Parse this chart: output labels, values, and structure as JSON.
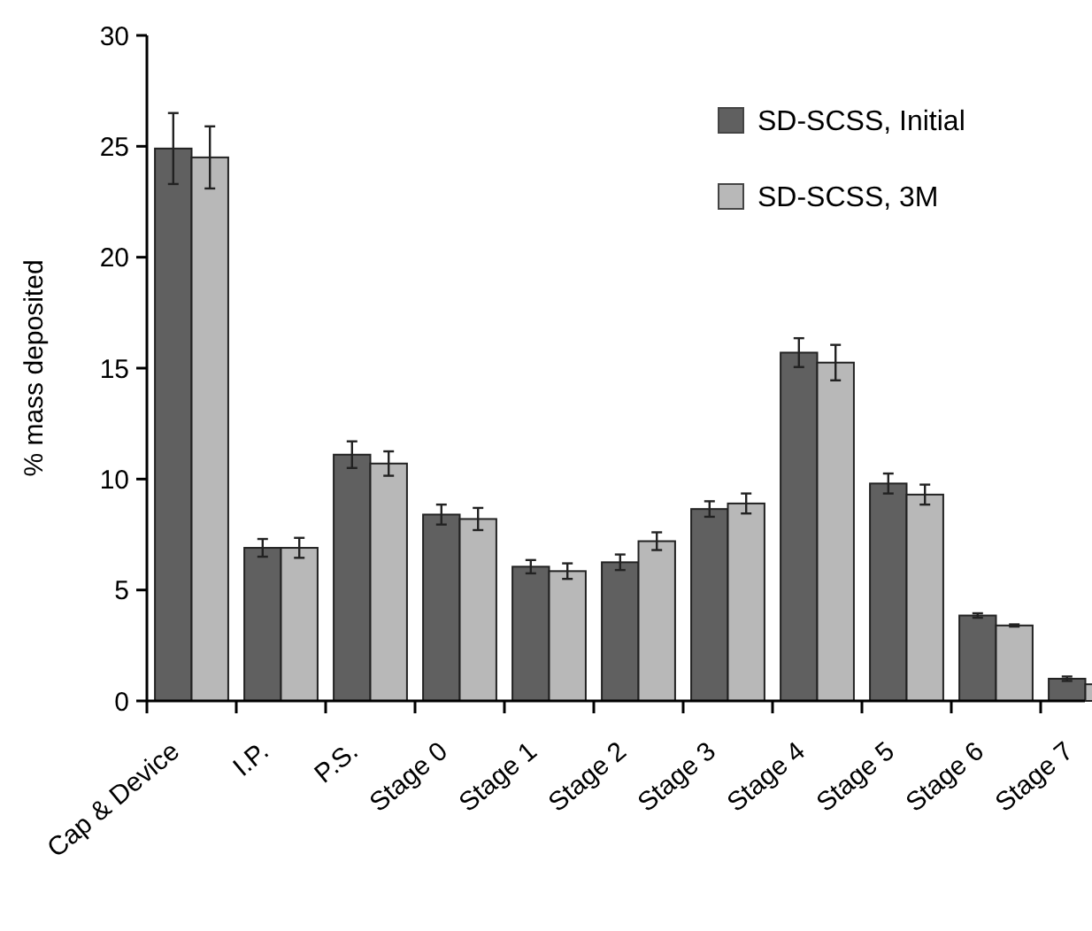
{
  "chart_data": {
    "type": "bar",
    "ylabel": "% mass deposited",
    "categories": [
      "Cap & Device",
      "I.P.",
      "P.S.",
      "Stage 0",
      "Stage 1",
      "Stage 2",
      "Stage 3",
      "Stage 4",
      "Stage 5",
      "Stage 6",
      "Stage 7"
    ],
    "series": [
      {
        "name": "SD-SCSS, Initial",
        "color": "#606060",
        "values": [
          24.9,
          6.9,
          11.1,
          8.4,
          6.05,
          6.25,
          8.65,
          15.7,
          9.8,
          3.85,
          1.0
        ],
        "errors": [
          1.6,
          0.4,
          0.6,
          0.45,
          0.3,
          0.35,
          0.35,
          0.65,
          0.45,
          0.1,
          0.1
        ]
      },
      {
        "name": "SD-SCSS, 3M",
        "color": "#b8b8b8",
        "values": [
          24.5,
          6.9,
          10.7,
          8.2,
          5.85,
          7.2,
          8.9,
          15.25,
          9.3,
          3.4,
          0.75
        ],
        "errors": [
          1.4,
          0.45,
          0.55,
          0.5,
          0.35,
          0.4,
          0.45,
          0.8,
          0.45,
          0.05,
          0.1
        ]
      }
    ],
    "ylim": [
      0,
      30
    ],
    "yticks": [
      0,
      5,
      10,
      15,
      20,
      25,
      30
    ],
    "grid": false,
    "legend": "top right"
  }
}
